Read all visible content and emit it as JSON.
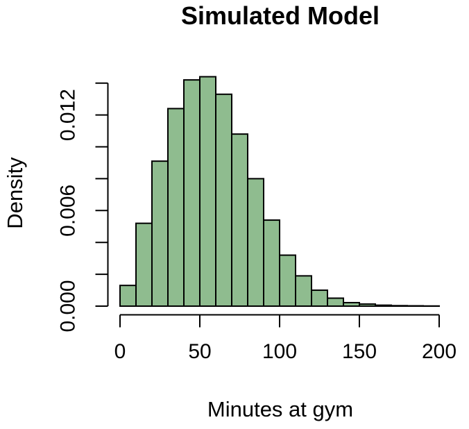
{
  "page": {
    "background": "#ffffff"
  },
  "chart_data": {
    "type": "bar",
    "subtype": "histogram",
    "title": "Simulated Model",
    "xlabel": "Minutes at gym",
    "ylabel": "Density",
    "xlim": [
      0,
      200
    ],
    "ylim": [
      0,
      0.014
    ],
    "grid": false,
    "legend": false,
    "bin_width": 10,
    "bin_edges": [
      0,
      10,
      20,
      30,
      40,
      50,
      60,
      70,
      80,
      90,
      100,
      110,
      120,
      130,
      140,
      150,
      160,
      170,
      180,
      190,
      200
    ],
    "densities": [
      0.0013,
      0.0052,
      0.0091,
      0.0124,
      0.0142,
      0.0144,
      0.0133,
      0.0108,
      0.008,
      0.0054,
      0.0032,
      0.0019,
      0.001,
      0.0005,
      0.00022,
      0.00013,
      6e-05,
      3e-05,
      2e-05,
      1e-05
    ],
    "x_tick_values": [
      0,
      50,
      100,
      150,
      200
    ],
    "x_tick_labels": [
      "0",
      "50",
      "100",
      "150",
      "200"
    ],
    "y_tick_values": [
      0,
      0.002,
      0.004,
      0.006,
      0.008,
      0.01,
      0.012,
      0.014
    ],
    "y_tick_label_values": [
      0,
      0.006,
      0.012
    ],
    "y_tick_labels": [
      "0.000",
      "0.006",
      "0.012"
    ],
    "colors": {
      "bar_fill": "#8FBC8F",
      "bar_stroke": "#000000",
      "axis": "#000000",
      "text": "#000000",
      "background": "#ffffff"
    }
  }
}
